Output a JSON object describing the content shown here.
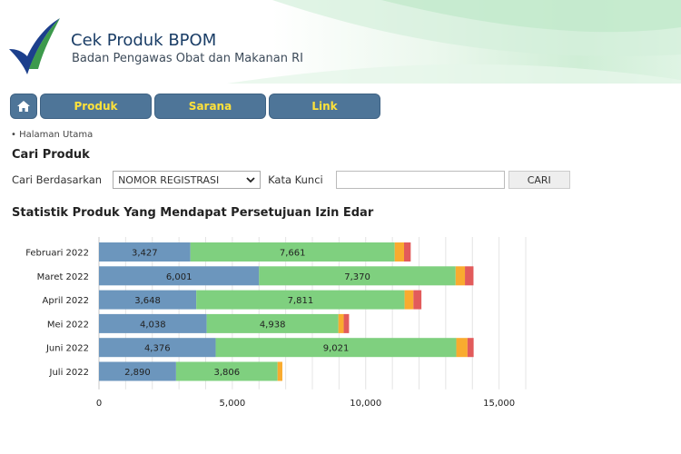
{
  "header": {
    "title": "Cek Produk BPOM",
    "subtitle": "Badan Pengawas Obat dan Makanan RI"
  },
  "nav": {
    "home_icon": "home-icon",
    "items": [
      {
        "label": "Produk"
      },
      {
        "label": "Sarana"
      },
      {
        "label": "Link"
      }
    ]
  },
  "breadcrumb": "• Halaman Utama",
  "search": {
    "title": "Cari Produk",
    "by_label": "Cari Berdasarkan",
    "selected_option": "NOMOR REGISTRASI",
    "keyword_label": "Kata Kunci",
    "keyword_value": "",
    "button_label": "CARI"
  },
  "chart_title": "Statistik Produk Yang Mendapat Persetujuan Izin Edar",
  "colors": {
    "nav_bg": "#4e7598",
    "nav_text": "#ffe23a",
    "series": [
      "#6c96bd",
      "#7fd07f",
      "#f9ab2f",
      "#e25b5b"
    ]
  },
  "chart_data": {
    "type": "bar",
    "orientation": "horizontal",
    "stacked": true,
    "categories": [
      "Februari 2022",
      "Maret 2022",
      "April 2022",
      "Mei 2022",
      "Juni 2022",
      "Juli 2022"
    ],
    "series": [
      {
        "values": [
          3427,
          6001,
          3648,
          4038,
          4376,
          2890
        ],
        "labels": [
          "3,427",
          "6,001",
          "3,648",
          "4,038",
          "4,376",
          "2,890"
        ]
      },
      {
        "values": [
          7661,
          7370,
          7811,
          4938,
          9021,
          3806
        ],
        "labels": [
          "7,661",
          "7,370",
          "7,811",
          "4,938",
          "9,021",
          "3,806"
        ]
      },
      {
        "values": [
          350,
          350,
          330,
          200,
          420,
          180
        ]
      },
      {
        "values": [
          250,
          320,
          300,
          200,
          230,
          0
        ]
      }
    ],
    "xlim": [
      0,
      16000
    ],
    "xticks": [
      0,
      5000,
      10000,
      15000
    ],
    "xtick_labels": [
      "0",
      "5,000",
      "10,000",
      "15,000"
    ],
    "grid": true
  }
}
